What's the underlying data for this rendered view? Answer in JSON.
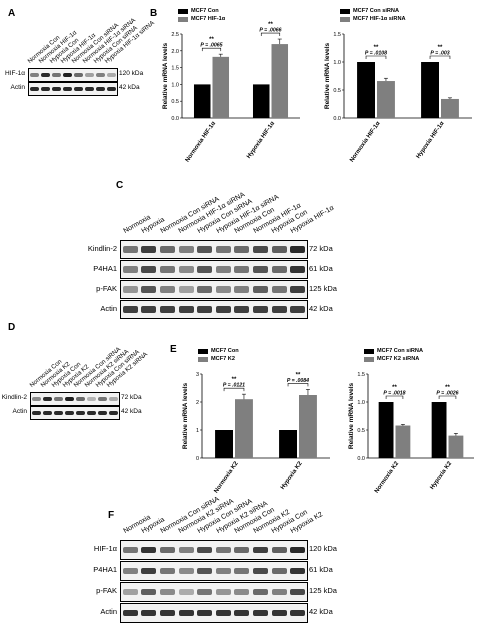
{
  "panels": {
    "A": {
      "letter": "A",
      "lanes": [
        "Normoxia Con",
        "Normoxia HIF-1α",
        "Hypoxia Con",
        "Hypoxia HIF-1α",
        "Normoxia Con siRNA",
        "Normoxia HIF-1α siRNA",
        "Hypoxia Con siRNA",
        "Hypoxia HIF-1α siRNA"
      ],
      "rows": [
        {
          "label": "HIF-1α",
          "kda": "120 kDa",
          "intensity": [
            0.5,
            0.9,
            0.55,
            0.95,
            0.6,
            0.35,
            0.5,
            0.3
          ]
        },
        {
          "label": "Actin",
          "kda": "42 kDa",
          "intensity": [
            0.9,
            0.9,
            0.9,
            0.9,
            0.9,
            0.9,
            0.9,
            0.9
          ]
        }
      ]
    },
    "B": {
      "letter": "B",
      "left": {
        "legend": [
          {
            "label": "MCF7 Con",
            "color": "#000000"
          },
          {
            "label": "MCF7 HIF-1α",
            "color": "#7f7f7f"
          }
        ],
        "ylabel": "Relative mRNA levels",
        "categories": [
          "Normoxia HIF-1α",
          "Hypoxia HIF-1α"
        ],
        "annotations": [
          {
            "stars": "**",
            "p": "P = .0065"
          },
          {
            "stars": "**",
            "p": "P = .0066"
          }
        ],
        "ylim": [
          0,
          2.5
        ],
        "ticks": [
          "0.0",
          "0.5",
          "1.0",
          "1.5",
          "2.0",
          "2.5"
        ]
      },
      "right": {
        "legend": [
          {
            "label": "MCF7 Con siRNA",
            "color": "#000000"
          },
          {
            "label": "MCF7 HIF-1α siRNA",
            "color": "#7f7f7f"
          }
        ],
        "ylabel": "Relative mRNA levels",
        "categories": [
          "Normoxia HIF-1α",
          "Hypoxia HIF-1α"
        ],
        "annotations": [
          {
            "stars": "**",
            "p": "P = .0108"
          },
          {
            "stars": "**",
            "p": "P = .003"
          }
        ],
        "ylim": [
          0,
          1.5
        ],
        "ticks": [
          "0.0",
          "0.5",
          "1.0",
          "1.5"
        ]
      }
    },
    "C": {
      "letter": "C",
      "lanes": [
        "Normoxia",
        "Hypoxia",
        "Normoxia Con siRNA",
        "Normoxia HIF-1α siRNA",
        "Hypoxia Con siRNA",
        "Hypoxia HIF-1α siRNA",
        "Normoxia Con",
        "Normoxia HIF-1α",
        "Hypoxia Con",
        "Hypoxia HIF-1α"
      ],
      "rows": [
        {
          "label": "Kindlin-2",
          "kda": "72 kDa",
          "intensity": [
            0.55,
            0.8,
            0.6,
            0.5,
            0.7,
            0.55,
            0.6,
            0.75,
            0.65,
            0.9
          ]
        },
        {
          "label": "P4HA1",
          "kda": "61 kDa",
          "intensity": [
            0.5,
            0.75,
            0.55,
            0.45,
            0.7,
            0.5,
            0.55,
            0.7,
            0.6,
            0.85
          ]
        },
        {
          "label": "p-FAK",
          "kda": "125 kDa",
          "intensity": [
            0.4,
            0.7,
            0.5,
            0.35,
            0.6,
            0.45,
            0.5,
            0.65,
            0.55,
            0.8
          ]
        },
        {
          "label": "Actin",
          "kda": "42 kDa",
          "intensity": [
            0.8,
            0.8,
            0.8,
            0.8,
            0.8,
            0.8,
            0.8,
            0.8,
            0.8,
            0.8
          ]
        }
      ]
    },
    "D": {
      "letter": "D",
      "lanes": [
        "Normoxia Con",
        "Normoxia K2",
        "Hypoxia Con",
        "Hypoxia K2",
        "Normoxia Con siRNA",
        "Normoxia K2 siRNA",
        "Hypoxia Con siRNA",
        "Hypoxia K2 siRNA"
      ],
      "rows": [
        {
          "label": "Kindlin-2",
          "kda": "72 kDa",
          "intensity": [
            0.45,
            0.9,
            0.55,
            0.95,
            0.6,
            0.25,
            0.55,
            0.3
          ]
        },
        {
          "label": "Actin",
          "kda": "42 kDa",
          "intensity": [
            0.9,
            0.9,
            0.9,
            0.9,
            0.9,
            0.9,
            0.9,
            0.9
          ]
        }
      ]
    },
    "E": {
      "letter": "E",
      "left": {
        "legend": [
          {
            "label": "MCF7 Con",
            "color": "#000000"
          },
          {
            "label": "MCF7 K2",
            "color": "#7f7f7f"
          }
        ],
        "ylabel": "Relative mRNA levels",
        "categories": [
          "Normoxia K2",
          "Hypoxia K2"
        ],
        "annotations": [
          {
            "stars": "**",
            "p": "P = .0121"
          },
          {
            "stars": "**",
            "p": "P = .0084"
          }
        ],
        "ylim": [
          0,
          3
        ],
        "ticks": [
          "0",
          "1",
          "2",
          "3"
        ]
      },
      "right": {
        "legend": [
          {
            "label": "MCF7 Con siRNA",
            "color": "#000000"
          },
          {
            "label": "MCF7 K2 siRNA",
            "color": "#7f7f7f"
          }
        ],
        "ylabel": "Relative mRNA levels",
        "categories": [
          "Normoxia K2",
          "Hypoxia K2"
        ],
        "annotations": [
          {
            "stars": "**",
            "p": "P = .0018"
          },
          {
            "stars": "**",
            "p": "P = .0026"
          }
        ],
        "ylim": [
          0,
          1.5
        ],
        "ticks": [
          "0.0",
          "0.5",
          "1.0",
          "1.5"
        ]
      }
    },
    "F": {
      "letter": "F",
      "lanes": [
        "Normoxia",
        "Hypoxia",
        "Normoxia Con siRNA",
        "Normoxia K2 siRNA",
        "Hypoxia Con siRNA",
        "Hypoxia K2 siRNA",
        "Normoxia Con",
        "Normoxia K2",
        "Hypoxia Con",
        "Hypoxia K2"
      ],
      "rows": [
        {
          "label": "HIF-1α",
          "kda": "120 kDa",
          "intensity": [
            0.55,
            0.85,
            0.6,
            0.5,
            0.75,
            0.55,
            0.6,
            0.8,
            0.65,
            0.9
          ]
        },
        {
          "label": "P4HA1",
          "kda": "61 kDa",
          "intensity": [
            0.5,
            0.8,
            0.55,
            0.45,
            0.7,
            0.5,
            0.55,
            0.75,
            0.6,
            0.85
          ]
        },
        {
          "label": "p-FAK",
          "kda": "125 kDa",
          "intensity": [
            0.35,
            0.65,
            0.45,
            0.3,
            0.55,
            0.4,
            0.45,
            0.6,
            0.5,
            0.75
          ]
        },
        {
          "label": "Actin",
          "kda": "42 kDa",
          "intensity": [
            0.85,
            0.85,
            0.85,
            0.85,
            0.85,
            0.85,
            0.85,
            0.85,
            0.85,
            0.85
          ]
        }
      ]
    }
  },
  "chart_data": [
    {
      "type": "bar",
      "categories": [
        "Normoxia HIF-1α",
        "Hypoxia HIF-1α"
      ],
      "series": [
        {
          "name": "MCF7 Con",
          "values": [
            1.0,
            1.0
          ],
          "errors": [
            0,
            0
          ]
        },
        {
          "name": "MCF7 HIF-1α",
          "values": [
            1.82,
            2.2
          ],
          "errors": [
            0.08,
            0.15
          ]
        }
      ],
      "ylabel": "Relative mRNA levels",
      "ylim": [
        0,
        2.5
      ]
    },
    {
      "type": "bar",
      "categories": [
        "Normoxia HIF-1α",
        "Hypoxia HIF-1α"
      ],
      "series": [
        {
          "name": "MCF7 Con siRNA",
          "values": [
            1.0,
            1.0
          ],
          "errors": [
            0,
            0
          ]
        },
        {
          "name": "MCF7 HIF-1α siRNA",
          "values": [
            0.66,
            0.34
          ],
          "errors": [
            0.05,
            0.02
          ]
        }
      ],
      "ylabel": "Relative mRNA levels",
      "ylim": [
        0,
        1.5
      ]
    },
    {
      "type": "bar",
      "categories": [
        "Normoxia K2",
        "Hypoxia K2"
      ],
      "series": [
        {
          "name": "MCF7 Con",
          "values": [
            1.0,
            1.0
          ],
          "errors": [
            0,
            0
          ]
        },
        {
          "name": "MCF7 K2",
          "values": [
            2.1,
            2.25
          ],
          "errors": [
            0.18,
            0.2
          ]
        }
      ],
      "ylabel": "Relative mRNA levels",
      "ylim": [
        0,
        3
      ]
    },
    {
      "type": "bar",
      "categories": [
        "Normoxia K2",
        "Hypoxia K2"
      ],
      "series": [
        {
          "name": "MCF7 Con siRNA",
          "values": [
            1.0,
            1.0
          ],
          "errors": [
            0,
            0
          ]
        },
        {
          "name": "MCF7 K2 siRNA",
          "values": [
            0.58,
            0.4
          ],
          "errors": [
            0.02,
            0.04
          ]
        }
      ],
      "ylabel": "Relative mRNA levels",
      "ylim": [
        0,
        1.5
      ]
    }
  ]
}
